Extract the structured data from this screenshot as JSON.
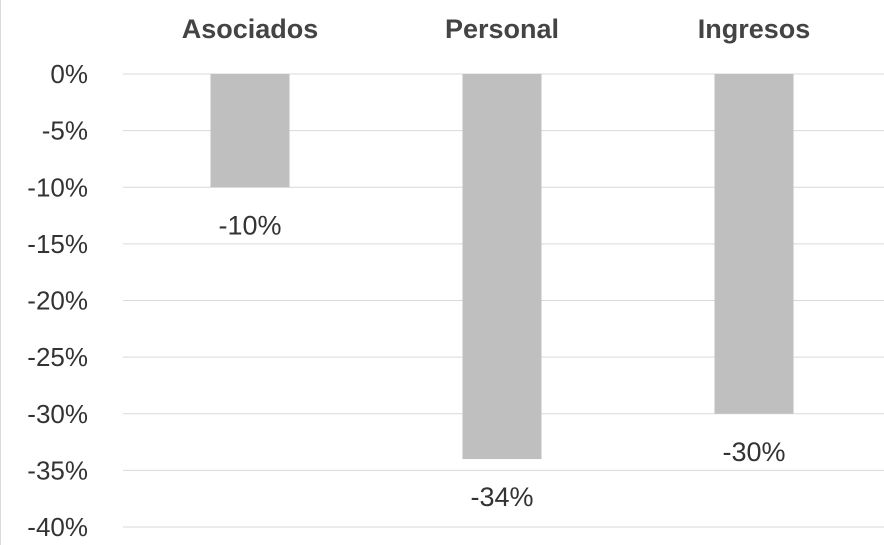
{
  "chart_data": {
    "type": "bar",
    "categories": [
      "Asociados",
      "Personal",
      "Ingresos"
    ],
    "values": [
      -10,
      -34,
      -30
    ],
    "data_labels": [
      "-10%",
      "-34%",
      "-30%"
    ],
    "y_ticks": [
      "0%",
      "-5%",
      "-10%",
      "-15%",
      "-20%",
      "-25%",
      "-30%",
      "-35%",
      "-40%"
    ],
    "y_tick_values": [
      0,
      -5,
      -10,
      -15,
      -20,
      -25,
      -30,
      -35,
      -40
    ],
    "ylim": [
      -40,
      0
    ],
    "category_axis_position": "top",
    "grid": true,
    "legend": "none",
    "bar_color": "#bfbfbf",
    "grid_color": "#d9d9d9"
  }
}
